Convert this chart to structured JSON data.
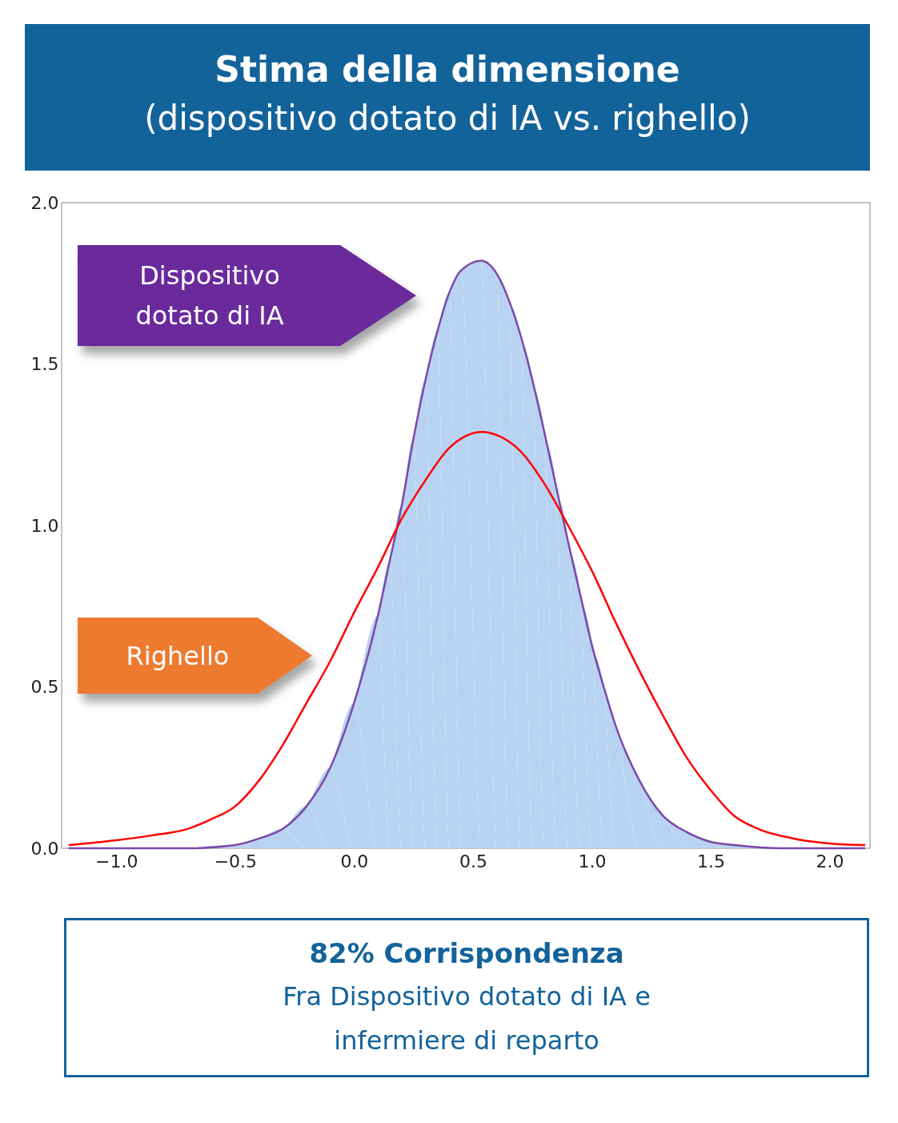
{
  "chart_data": {
    "type": "line",
    "title": "Stima della dimensione",
    "subtitle": "(dispositivo dotato di IA vs. righello)",
    "annotations": [
      "Dispositivo dotato di IA",
      "Righello",
      "82% Corrispondenza",
      "Fra Dispositivo dotato di IA e infermiere di reparto"
    ],
    "series": [
      {
        "color": "#7d48a8",
        "x": [
          -1.2,
          -0.7,
          -0.5,
          -0.4,
          -0.3,
          -0.2,
          -0.1,
          0,
          0.1,
          0.15,
          0.2,
          0.25,
          0.3,
          0.35,
          0.4,
          0.45,
          0.535,
          0.6,
          0.65,
          0.7,
          0.75,
          0.8,
          0.85,
          0.9,
          0.95,
          1.0,
          1.05,
          1.1,
          1.2,
          1.3,
          1.4,
          1.5,
          1.6,
          1.8,
          2.15
        ],
        "values": [
          0,
          0,
          0.01,
          0.03,
          0.06,
          0.13,
          0.25,
          0.45,
          0.72,
          0.89,
          1.06,
          1.27,
          1.45,
          1.6,
          1.72,
          1.79,
          1.82,
          1.78,
          1.7,
          1.59,
          1.45,
          1.29,
          1.12,
          0.95,
          0.79,
          0.63,
          0.5,
          0.38,
          0.21,
          0.1,
          0.05,
          0.02,
          0.01,
          0,
          0
        ]
      },
      {
        "type": "area",
        "color": "#b8d3f2",
        "x": [
          -0.7,
          -0.5,
          -0.4,
          -0.3,
          -0.2,
          -0.1,
          0,
          0.1,
          0.15,
          0.2,
          0.25,
          0.3,
          0.35,
          0.4,
          0.45,
          0.535,
          0.6,
          0.65,
          0.7,
          0.75,
          0.8,
          0.85,
          0.9,
          0.95,
          1.0,
          1.05,
          1.1,
          1.2,
          1.3,
          1.4,
          1.5,
          1.6,
          1.8
        ],
        "values": [
          0,
          0.01,
          0.03,
          0.06,
          0.13,
          0.25,
          0.45,
          0.72,
          0.89,
          1.06,
          1.27,
          1.45,
          1.6,
          1.72,
          1.79,
          1.82,
          1.78,
          1.7,
          1.59,
          1.45,
          1.29,
          1.12,
          0.95,
          0.79,
          0.63,
          0.5,
          0.38,
          0.21,
          0.1,
          0.05,
          0.02,
          0.01,
          0
        ]
      },
      {
        "color": "#ff0000",
        "x": [
          -1.2,
          -1.0,
          -0.85,
          -0.7,
          -0.6,
          -0.5,
          -0.4,
          -0.3,
          -0.2,
          -0.1,
          0,
          0.1,
          0.2,
          0.3,
          0.4,
          0.54,
          0.6,
          0.7,
          0.8,
          0.9,
          1.0,
          1.1,
          1.2,
          1.3,
          1.4,
          1.5,
          1.6,
          1.7,
          1.85,
          2.0,
          2.15
        ],
        "values": [
          0.01,
          0.025,
          0.04,
          0.06,
          0.09,
          0.13,
          0.21,
          0.32,
          0.45,
          0.58,
          0.73,
          0.87,
          1.02,
          1.14,
          1.24,
          1.29,
          1.28,
          1.23,
          1.13,
          1.0,
          0.86,
          0.7,
          0.55,
          0.41,
          0.28,
          0.18,
          0.1,
          0.06,
          0.03,
          0.015,
          0.01
        ]
      }
    ],
    "xlim": [
      -1.23,
      2.17
    ],
    "ylim": [
      0,
      2
    ],
    "xticks": [
      {
        "value": -1,
        "label": "−1.0"
      },
      {
        "value": -0.5,
        "label": "−0.5"
      },
      {
        "value": 0,
        "label": "0.0"
      },
      0.5,
      {
        "value": 1,
        "label": "1.0"
      },
      1.5,
      {
        "value": 2,
        "label": "2.0"
      }
    ],
    "yticks": [
      {
        "value": 0,
        "label": "0.0"
      },
      0.5,
      {
        "value": 1,
        "label": "1.0"
      },
      1.5,
      {
        "value": 2,
        "label": "2.0"
      }
    ],
    "legend": false,
    "grid": false
  }
}
